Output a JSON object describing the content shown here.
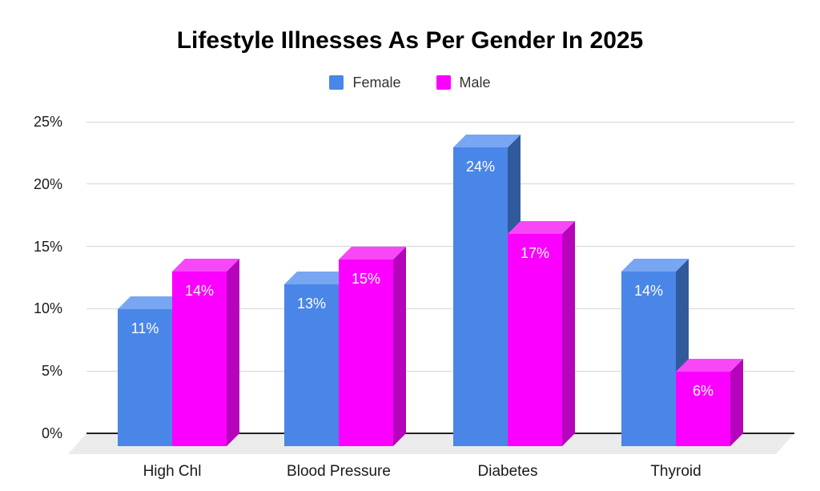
{
  "chart_data": {
    "type": "bar",
    "style": "3d-column",
    "title": "Lifestyle Illnesses As Per Gender In 2025",
    "categories": [
      "High Chl",
      "Blood Pressure",
      "Diabetes",
      "Thyroid"
    ],
    "series": [
      {
        "name": "Female",
        "values": [
          11,
          13,
          24,
          14
        ],
        "color_front": "#4a86e8",
        "color_top": "#78a6f2",
        "color_side": "#315a9d"
      },
      {
        "name": "Male",
        "values": [
          14,
          15,
          17,
          6
        ],
        "color_front": "#fb00fe",
        "color_top": "#f747f7",
        "color_side": "#b504bc"
      }
    ],
    "value_suffix": "%",
    "data_label_color": "#ffffff",
    "y_axis": {
      "min": 0,
      "max": 25,
      "tick_step": 5,
      "tick_labels": [
        "0%",
        "5%",
        "10%",
        "15%",
        "20%",
        "25%"
      ]
    },
    "grid": true,
    "legend_position": "top",
    "colors": {
      "gridline": "#d6d6d6",
      "axis_line": "#212121",
      "floor": "#ebebeb",
      "axis_text": "#1a1a1a",
      "title_text": "#000000",
      "legend_text": "#333333"
    }
  }
}
